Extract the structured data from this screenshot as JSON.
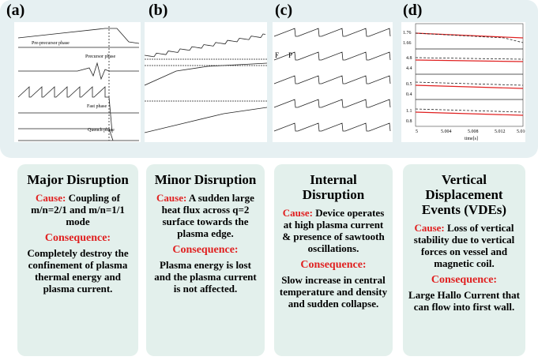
{
  "panels": [
    {
      "label": "(a)",
      "title": "Major Disruption",
      "cause_label": "Cause:",
      "cause": "Coupling of m/n=2/1 and m/n=1/1 mode",
      "consequence_label": "Consequence:",
      "consequence": "Completely destroy the confinement of plasma thermal energy and plasma current.",
      "figure_texts": [
        "Pre-precursor phase",
        "Precursor phase",
        "Fast phase",
        "Quench phase"
      ]
    },
    {
      "label": "(b)",
      "title": "Minor Disruption",
      "cause_label": "Cause:",
      "cause": "A sudden large heat flux across q=2 surface towards the plasma edge.",
      "consequence_label": "Consequence:",
      "consequence": "Plasma energy is lost and the plasma current is not affected."
    },
    {
      "label": "(c)",
      "title": "Internal Disruption",
      "cause_label": "Cause:",
      "cause": "Device operates at high plasma current & presence of sawtooth oscillations.",
      "consequence_label": "Consequence:",
      "consequence": "Slow increase in central temperature and density and sudden collapse.",
      "figure_texts": [
        "F",
        "P"
      ]
    },
    {
      "label": "(d)",
      "title": "Vertical Displacement Events (VDEs)",
      "cause_label": "Cause:",
      "cause": "Loss of vertical stability due to vertical forces on vessel and magnetic coil.",
      "consequence_label": "Consequence:",
      "consequence": "Large Hallo Current that can flow into first wall.",
      "figure_texts": [
        "1.76",
        "1.66",
        "4.8",
        "4.4",
        "0.5",
        "0.4",
        "1.1",
        "0.8",
        "5",
        "5.004",
        "5.008",
        "5.012",
        "5.016",
        "time[s]"
      ]
    }
  ]
}
